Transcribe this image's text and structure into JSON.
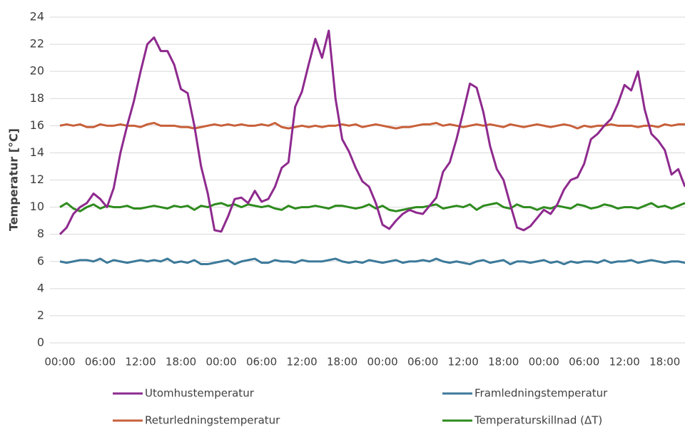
{
  "chart_data": {
    "type": "line",
    "y_label": "Temperatur [°C]",
    "categories": [
      "00:00",
      null,
      null,
      null,
      null,
      null,
      "06:00",
      null,
      null,
      null,
      null,
      null,
      "12:00",
      null,
      null,
      null,
      null,
      null,
      "18:00",
      null,
      null,
      null,
      null,
      null,
      "00:00",
      null,
      null,
      null,
      null,
      null,
      "06:00",
      null,
      null,
      null,
      null,
      null,
      "12:00",
      null,
      null,
      null,
      null,
      null,
      "18:00",
      null,
      null,
      null,
      null,
      null,
      "00:00",
      null,
      null,
      null,
      null,
      null,
      "06:00",
      null,
      null,
      null,
      null,
      null,
      "12:00",
      null,
      null,
      null,
      null,
      null,
      "18:00",
      null,
      null,
      null,
      null,
      null,
      "00:00",
      null,
      null,
      null,
      null,
      null,
      "06:00",
      null,
      null,
      null,
      null,
      null,
      "12:00",
      null,
      null,
      null,
      null,
      null,
      "18:00",
      null,
      null,
      null
    ],
    "series": [
      {
        "name": "Utomhustemperatur",
        "color": "#8e2a8e",
        "values": [
          8.0,
          8.5,
          9.5,
          10.0,
          10.3,
          11.0,
          10.6,
          10.0,
          11.4,
          14.0,
          16.0,
          17.8,
          20.0,
          22.0,
          22.5,
          21.5,
          21.5,
          20.5,
          18.7,
          18.4,
          16.0,
          13.0,
          11.0,
          8.3,
          8.2,
          9.3,
          10.6,
          10.7,
          10.3,
          11.2,
          10.4,
          10.6,
          11.5,
          12.9,
          13.3,
          17.4,
          18.5,
          20.5,
          22.4,
          21.0,
          23.0,
          18.0,
          15.0,
          14.1,
          12.9,
          11.9,
          11.5,
          10.3,
          8.7,
          8.4,
          9.0,
          9.5,
          9.8,
          9.6,
          9.5,
          10.1,
          10.7,
          12.6,
          13.3,
          15.0,
          17.0,
          19.1,
          18.8,
          17.0,
          14.5,
          12.8,
          12.0,
          10.2,
          8.5,
          8.3,
          8.6,
          9.2,
          9.8,
          9.5,
          10.2,
          11.3,
          12.0,
          12.2,
          13.2,
          15.0,
          15.4,
          16.0,
          16.5,
          17.6,
          19.0,
          18.6,
          20.0,
          17.2,
          15.4,
          14.9,
          14.2,
          12.4,
          12.8,
          11.5
        ]
      },
      {
        "name": "Framledningstemperatur",
        "color": "#3d7a9a",
        "values": [
          6.0,
          5.9,
          6.0,
          6.1,
          6.1,
          6.0,
          6.2,
          5.9,
          6.1,
          6.0,
          5.9,
          6.0,
          6.1,
          6.0,
          6.1,
          6.0,
          6.2,
          5.9,
          6.0,
          5.9,
          6.1,
          5.8,
          5.8,
          5.9,
          6.0,
          6.1,
          5.8,
          6.0,
          6.1,
          6.2,
          5.9,
          5.9,
          6.1,
          6.0,
          6.0,
          5.9,
          6.1,
          6.0,
          6.0,
          6.0,
          6.1,
          6.2,
          6.0,
          5.9,
          6.0,
          5.9,
          6.1,
          6.0,
          5.9,
          6.0,
          6.1,
          5.9,
          6.0,
          6.0,
          6.1,
          6.0,
          6.2,
          6.0,
          5.9,
          6.0,
          5.9,
          5.8,
          6.0,
          6.1,
          5.9,
          6.0,
          6.1,
          5.8,
          6.0,
          6.0,
          5.9,
          6.0,
          6.1,
          5.9,
          6.0,
          5.8,
          6.0,
          5.9,
          6.0,
          6.0,
          5.9,
          6.1,
          5.9,
          6.0,
          6.0,
          6.1,
          5.9,
          6.0,
          6.1,
          6.0,
          5.9,
          6.0,
          6.0,
          5.9
        ]
      },
      {
        "name": "Returledningstemperatur",
        "color": "#c8603a",
        "values": [
          16.0,
          16.1,
          16.0,
          16.1,
          15.9,
          15.9,
          16.1,
          16.0,
          16.0,
          16.1,
          16.0,
          16.0,
          15.9,
          16.1,
          16.2,
          16.0,
          16.0,
          16.0,
          15.9,
          15.9,
          15.8,
          15.9,
          16.0,
          16.1,
          16.0,
          16.1,
          16.0,
          16.1,
          16.0,
          16.0,
          16.1,
          16.0,
          16.2,
          15.9,
          15.8,
          15.9,
          16.0,
          15.9,
          16.0,
          15.9,
          16.0,
          16.0,
          16.1,
          16.0,
          16.1,
          15.9,
          16.0,
          16.1,
          16.0,
          15.9,
          15.8,
          15.9,
          15.9,
          16.0,
          16.1,
          16.1,
          16.2,
          16.0,
          16.1,
          16.0,
          15.9,
          16.0,
          16.1,
          16.0,
          16.1,
          16.0,
          15.9,
          16.1,
          16.0,
          15.9,
          16.0,
          16.1,
          16.0,
          15.9,
          16.0,
          16.1,
          16.0,
          15.8,
          16.0,
          15.9,
          16.0,
          16.0,
          16.1,
          16.0,
          16.0,
          16.0,
          15.9,
          16.0,
          16.0,
          15.9,
          16.1,
          16.0,
          16.1,
          16.1
        ]
      },
      {
        "name": "Temperaturskillnad (ΔT)",
        "color": "#2e8b1e",
        "values": [
          10.0,
          10.3,
          9.9,
          9.7,
          10.0,
          10.2,
          9.9,
          10.1,
          10.0,
          10.0,
          10.1,
          9.9,
          9.9,
          10.0,
          10.1,
          10.0,
          9.9,
          10.1,
          10.0,
          10.1,
          9.8,
          10.1,
          10.0,
          10.2,
          10.3,
          10.1,
          10.2,
          10.0,
          10.2,
          10.1,
          10.0,
          10.1,
          9.9,
          9.8,
          10.1,
          9.9,
          10.0,
          10.0,
          10.1,
          10.0,
          9.9,
          10.1,
          10.1,
          10.0,
          9.9,
          10.0,
          10.2,
          9.9,
          10.1,
          9.8,
          9.7,
          9.8,
          9.9,
          10.0,
          10.0,
          10.1,
          10.2,
          9.9,
          10.0,
          10.1,
          10.0,
          10.2,
          9.8,
          10.1,
          10.2,
          10.3,
          10.0,
          9.9,
          10.2,
          10.0,
          10.0,
          9.8,
          10.0,
          9.9,
          10.1,
          10.0,
          9.9,
          10.2,
          10.1,
          9.9,
          10.0,
          10.2,
          10.1,
          9.9,
          10.0,
          10.0,
          9.9,
          10.1,
          10.3,
          10.0,
          10.1,
          9.9,
          10.1,
          10.3
        ]
      }
    ],
    "ylim": [
      0,
      24
    ],
    "yticks": [
      0,
      2,
      4,
      6,
      8,
      10,
      12,
      14,
      16,
      18,
      20,
      22,
      24
    ],
    "grid": true,
    "legend": "bottom"
  }
}
